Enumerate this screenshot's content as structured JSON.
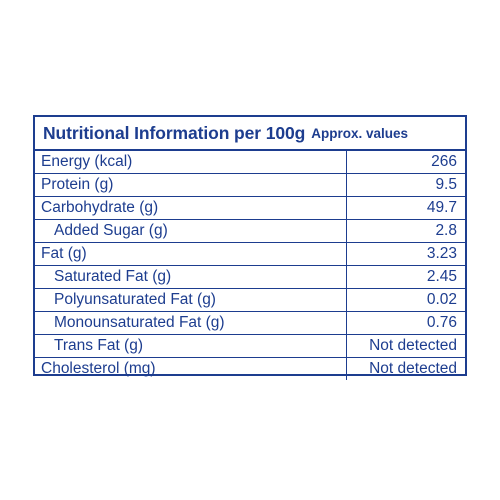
{
  "heading": {
    "title": "Nutritional Information per 100g",
    "subtitle": "Approx. values"
  },
  "colors": {
    "ink": "#1d3d8f",
    "background": "#ffffff"
  },
  "rows": [
    {
      "name": "Energy (kcal)",
      "value": "266",
      "indent": false
    },
    {
      "name": "Protein (g)",
      "value": "9.5",
      "indent": false
    },
    {
      "name": "Carbohydrate (g)",
      "value": "49.7",
      "indent": false
    },
    {
      "name": "Added Sugar (g)",
      "value": "2.8",
      "indent": true
    },
    {
      "name": "Fat (g)",
      "value": "3.23",
      "indent": false
    },
    {
      "name": "Saturated Fat (g)",
      "value": "2.45",
      "indent": true
    },
    {
      "name": "Polyunsaturated Fat (g)",
      "value": "0.02",
      "indent": true
    },
    {
      "name": "Monounsaturated Fat (g)",
      "value": "0.76",
      "indent": true
    },
    {
      "name": "Trans Fat (g)",
      "value": "Not detected",
      "indent": true
    },
    {
      "name": "Cholesterol (mg)",
      "value": "Not detected",
      "indent": false
    }
  ]
}
